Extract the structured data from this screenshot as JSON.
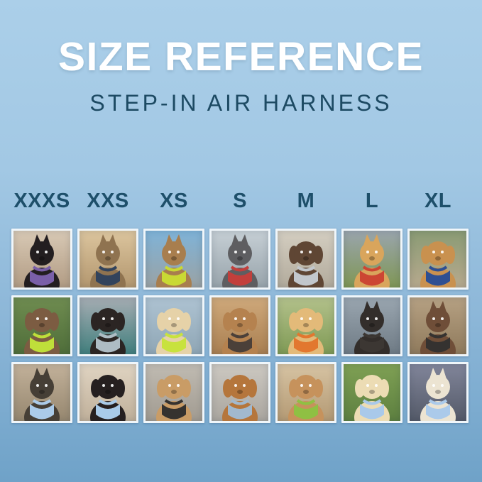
{
  "page": {
    "title": "SIZE REFERENCE",
    "subtitle": "STEP-IN AIR HARNESS"
  },
  "colors": {
    "background_top": "#abcfe9",
    "background_bottom": "#6fa2c8",
    "title_text": "#ffffff",
    "subtitle_text": "#1d4a63",
    "size_label_text": "#1e4f6a",
    "photo_frame": "#f0f6fa"
  },
  "size_columns": [
    "XXXS",
    "XXS",
    "XS",
    "S",
    "M",
    "L",
    "XL"
  ],
  "grid": {
    "rows": 3,
    "columns": 7,
    "cells": [
      {
        "size": "XXXS",
        "row": 1,
        "alt": "Black kitten wearing purple harness indoors",
        "species": "cat",
        "ears": "up",
        "pet": "#231e20",
        "harness": "#7a5fa8",
        "bg": [
          "#d8c9b5",
          "#b29c84"
        ]
      },
      {
        "size": "XXS",
        "row": 1,
        "alt": "Tabby cat wearing navy harness by window",
        "species": "cat",
        "ears": "up",
        "pet": "#8f7350",
        "harness": "#32435c",
        "bg": [
          "#dcc59e",
          "#b3976f"
        ]
      },
      {
        "size": "XS",
        "row": 1,
        "alt": "Tabby cat in car wearing lime green harness",
        "species": "cat",
        "ears": "up",
        "pet": "#a87e4e",
        "harness": "#c9d934",
        "bg": [
          "#7fb3d8",
          "#9aa2a4"
        ]
      },
      {
        "size": "S",
        "row": 1,
        "alt": "Grey French bulldog wearing red harness on sidewalk",
        "species": "dog",
        "ears": "up",
        "pet": "#5e5e61",
        "harness": "#c23f3c",
        "bg": [
          "#c6cfd5",
          "#98a4ab"
        ]
      },
      {
        "size": "M",
        "row": 1,
        "alt": "Chocolate spaniel wearing grey harness on concrete",
        "species": "dog",
        "ears": "down",
        "pet": "#5f4634",
        "harness": "#c2c7cc",
        "bg": [
          "#d4cec1",
          "#b2ab9c"
        ]
      },
      {
        "size": "L",
        "row": 1,
        "alt": "Shiba inu with red ball wearing red harness in field",
        "species": "dog",
        "ears": "up",
        "pet": "#d9a55c",
        "harness": "#cc4633",
        "bg": [
          "#9aa5ad",
          "#7f9655"
        ]
      },
      {
        "size": "XL",
        "row": 1,
        "alt": "Golden retriever wearing navy harness on flower path",
        "species": "dog",
        "ears": "down",
        "pet": "#c9914f",
        "harness": "#2e4f92",
        "bg": [
          "#8a9b74",
          "#b7a98e"
        ]
      },
      {
        "size": "XXXS",
        "row": 2,
        "alt": "Brown fluffy puppy wearing lime green harness in garden",
        "species": "dog",
        "ears": "down",
        "pet": "#7c5c42",
        "harness": "#bfdf3a",
        "bg": [
          "#6f8c50",
          "#4f6e3a"
        ]
      },
      {
        "size": "XXS",
        "row": 2,
        "alt": "Black pug puppy wearing grey harness on teal blanket",
        "species": "dog",
        "ears": "down",
        "pet": "#2b2523",
        "harness": "#aebcc4",
        "bg": [
          "#a6adb3",
          "#417f7d"
        ]
      },
      {
        "size": "XS",
        "row": 2,
        "alt": "Cream dachshund wearing lime green harness on boat",
        "species": "dog",
        "ears": "down",
        "pet": "#e6d2a8",
        "harness": "#c8e23e",
        "bg": [
          "#aec3d2",
          "#8fa6b5"
        ]
      },
      {
        "size": "S",
        "row": 2,
        "alt": "Tan long-haired dachshund wearing dark harness on dock",
        "species": "dog",
        "ears": "down",
        "pet": "#b5824f",
        "harness": "#4b4039",
        "bg": [
          "#cfa97b",
          "#a97f51"
        ]
      },
      {
        "size": "M",
        "row": 2,
        "alt": "Golden retriever puppy wearing orange harness on lawn",
        "species": "dog",
        "ears": "down",
        "pet": "#e3ba79",
        "harness": "#e2772f",
        "bg": [
          "#b3c18b",
          "#7f9a55"
        ]
      },
      {
        "size": "L",
        "row": 2,
        "alt": "Black and tan dog wearing dark harness in metal tunnel",
        "species": "dog",
        "ears": "up",
        "pet": "#332e2b",
        "harness": "#3c3733",
        "bg": [
          "#9aa6b0",
          "#6f7b85"
        ]
      },
      {
        "size": "XL",
        "row": 2,
        "alt": "Brown and white dog wearing dark harness on wooden deck",
        "species": "dog",
        "ears": "up",
        "pet": "#6f4e38",
        "harness": "#353230",
        "bg": [
          "#b6a183",
          "#8f7a5c"
        ]
      },
      {
        "size": "XXXS",
        "row": 3,
        "alt": "Yorkie puppy wearing light blue harness on sunny path",
        "species": "dog",
        "ears": "up",
        "pet": "#463f36",
        "harness": "#abcbe9",
        "bg": [
          "#c2b19a",
          "#96876f"
        ]
      },
      {
        "size": "XXS",
        "row": 3,
        "alt": "Black and tan dachshund wearing light blue harness on couch",
        "species": "dog",
        "ears": "down",
        "pet": "#262020",
        "harness": "#a9cbe9",
        "bg": [
          "#e0d4c2",
          "#c0b09a"
        ]
      },
      {
        "size": "XS",
        "row": 3,
        "alt": "Apricot poodle puppy wearing black harness on deck",
        "species": "dog",
        "ears": "down",
        "pet": "#c99c66",
        "harness": "#35322f",
        "bg": [
          "#c0bbb2",
          "#a19b91"
        ]
      },
      {
        "size": "S",
        "row": 3,
        "alt": "Red dachshund wearing grey-blue harness on concrete",
        "species": "dog",
        "ears": "down",
        "pet": "#b5763c",
        "harness": "#a2b9ce",
        "bg": [
          "#ccc8c1",
          "#aaa69f"
        ]
      },
      {
        "size": "M",
        "row": 3,
        "alt": "Apricot goldendoodle wearing green harness on sidewalk",
        "species": "dog",
        "ears": "down",
        "pet": "#c6925c",
        "harness": "#8fc043",
        "bg": [
          "#d6c3a3",
          "#b49a74"
        ]
      },
      {
        "size": "L",
        "row": 3,
        "alt": "Cream golden retriever puppy wearing light blue harness on grass",
        "species": "dog",
        "ears": "down",
        "pet": "#ecdcb4",
        "harness": "#a9c9ea",
        "bg": [
          "#7fa054",
          "#5d8040"
        ]
      },
      {
        "size": "XL",
        "row": 3,
        "alt": "White dog wearing light blue harness on city street at dusk",
        "species": "dog",
        "ears": "up",
        "pet": "#ece4d2",
        "harness": "#abcaea",
        "bg": [
          "#81859a",
          "#545a68"
        ]
      }
    ]
  }
}
